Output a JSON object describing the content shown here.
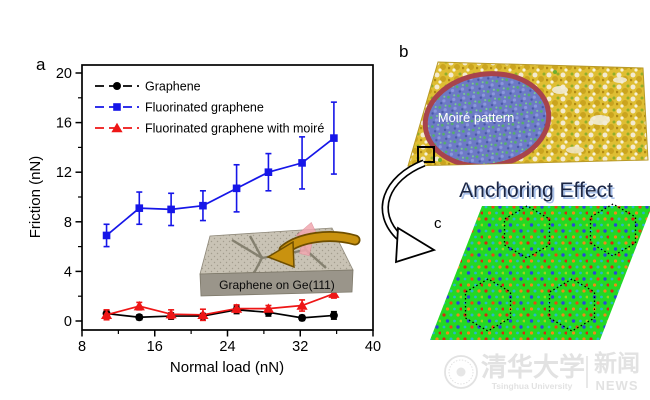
{
  "figure": {
    "panel_a_label": "a",
    "panel_b_label": "b",
    "panel_c_label": "c",
    "moire_label": "Moiré pattern",
    "anchoring_text": "Anchoring Effect"
  },
  "chart_data": {
    "type": "line",
    "title": "",
    "xlabel": "Normal load (nN)",
    "ylabel": "Friction (nN)",
    "xlim": [
      8,
      40
    ],
    "ylim": [
      0,
      20
    ],
    "x_major_ticks": [
      8,
      16,
      24,
      32,
      40
    ],
    "x_minor_ticks": [
      12,
      20,
      28,
      36
    ],
    "y_major_ticks": [
      0,
      4,
      8,
      12,
      16,
      20
    ],
    "y_minor_ticks": [
      2,
      6,
      10,
      14,
      18
    ],
    "grid": false,
    "legend_position": "top-left",
    "x": [
      10.7,
      14.3,
      17.8,
      21.3,
      25,
      28.5,
      32.2,
      35.7
    ],
    "series": [
      {
        "name": "Graphene",
        "marker": "circle",
        "color": "#000000",
        "values": [
          0.6,
          0.3,
          0.4,
          0.4,
          0.9,
          0.7,
          0.25,
          0.45
        ],
        "errors": [
          0.25,
          0.2,
          0.25,
          0.2,
          0.3,
          0.3,
          0.2,
          0.3
        ]
      },
      {
        "name": "Fluorinated graphene",
        "marker": "square",
        "color": "#1616e8",
        "values": [
          6.9,
          9.1,
          9.0,
          9.3,
          10.7,
          12.0,
          12.75,
          14.75
        ],
        "errors": [
          0.9,
          1.3,
          1.3,
          1.2,
          1.9,
          1.5,
          2.1,
          2.9
        ]
      },
      {
        "name": "Fluorinated graphene with moiré",
        "marker": "triangle",
        "color": "#ee1616",
        "values": [
          0.5,
          1.2,
          0.55,
          0.5,
          1.0,
          1.0,
          1.25,
          2.2
        ],
        "errors": [
          0.4,
          0.3,
          0.35,
          0.45,
          0.3,
          0.25,
          0.45,
          0.35
        ]
      }
    ],
    "inset_label": "Graphene on Ge(111)"
  },
  "watermark": {
    "university_cn": "清华大学",
    "university_en": "Tsinghua University",
    "news_cn": "新闻",
    "news_en": "NEWS"
  },
  "colors": {
    "black_series": "#000000",
    "blue_series": "#1616e8",
    "red_series": "#ee1616",
    "anchoring_text": "#1a2544",
    "anchoring_shadow": "#a9c1ea",
    "panel_b_surface": "#dfbe33",
    "moire_region": "#6d7ac6",
    "moire_rim": "#a8434c",
    "lattice_green": "#23d923",
    "watermark_gray": "#e2e2e2"
  }
}
